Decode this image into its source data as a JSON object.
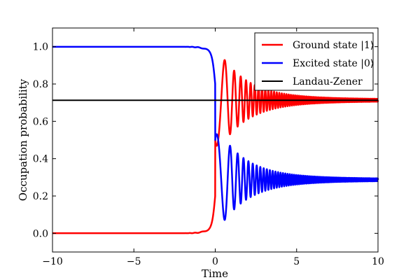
{
  "chart_data": {
    "type": "line",
    "title": "",
    "xlabel": "Time",
    "ylabel": "Occupation probability",
    "xlim": [
      -10,
      10
    ],
    "ylim": [
      -0.1,
      1.1
    ],
    "xticks": [
      -10,
      -5,
      0,
      5,
      10
    ],
    "xtick_labels": [
      "−10",
      "−5",
      "0",
      "5",
      "10"
    ],
    "yticks": [
      0.0,
      0.2,
      0.4,
      0.6,
      0.8,
      1.0
    ],
    "ytick_labels": [
      "0.0",
      "0.2",
      "0.4",
      "0.6",
      "0.8",
      "1.0"
    ],
    "grid": false,
    "legend_position": "top-right",
    "series": [
      {
        "name": "Ground state |1⟩",
        "color": "#ff0000",
        "style": "solid",
        "description_values": {
          "start": 0.0,
          "first_peak": 0.87,
          "asymptote": 0.715
        }
      },
      {
        "name": "Excited state |0⟩",
        "color": "#0000ff",
        "style": "solid",
        "description_values": {
          "start": 1.0,
          "first_trough": 0.13,
          "asymptote": 0.285
        }
      },
      {
        "name": "Landau-Zener",
        "color": "#000000",
        "style": "solid",
        "values": [
          0.713
        ]
      }
    ],
    "sample_points": {
      "x": [
        -10,
        -8,
        -6,
        -4,
        -2,
        -1,
        -0.5,
        0,
        0.2,
        0.5,
        0.8,
        1.0,
        1.3,
        1.6,
        2,
        3,
        5,
        10
      ],
      "ground": [
        0.0,
        0.0,
        0.0,
        0.003,
        0.01,
        0.03,
        0.08,
        0.5,
        0.72,
        0.87,
        0.6,
        0.8,
        0.63,
        0.77,
        0.7,
        0.73,
        0.72,
        0.715
      ],
      "excited": [
        1.0,
        1.0,
        1.0,
        0.997,
        0.99,
        0.97,
        0.92,
        0.5,
        0.28,
        0.13,
        0.4,
        0.2,
        0.37,
        0.23,
        0.3,
        0.27,
        0.28,
        0.285
      ]
    }
  }
}
